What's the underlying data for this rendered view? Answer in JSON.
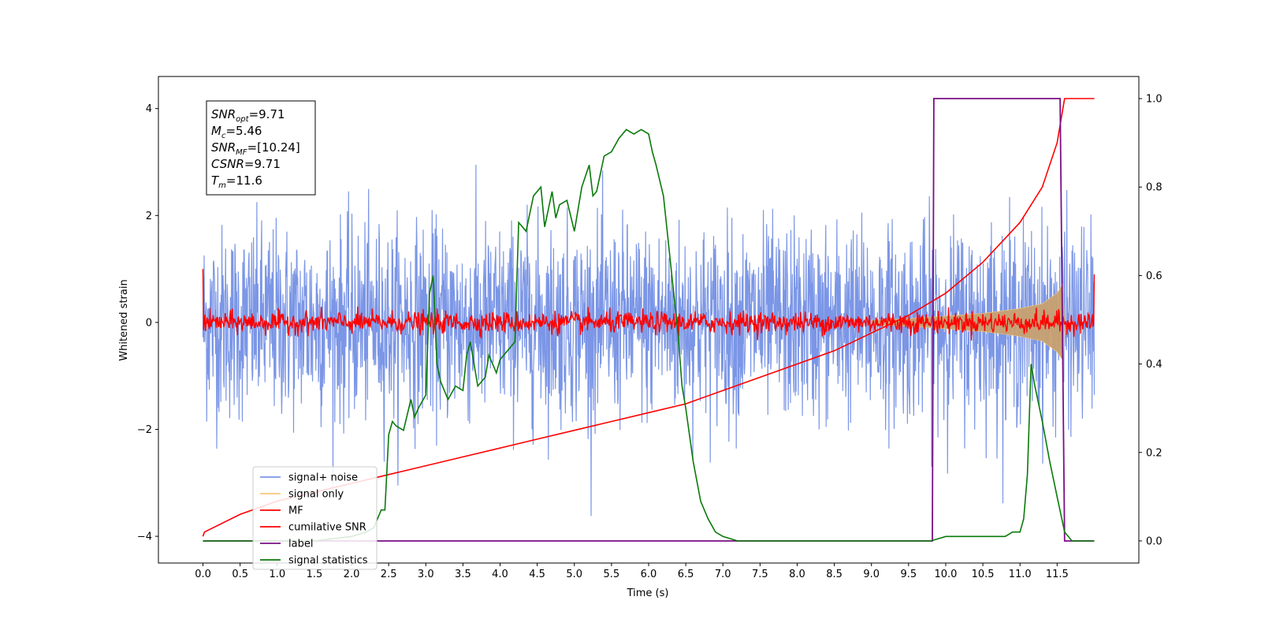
{
  "chart_data": {
    "type": "line",
    "xlabel": "Time (s)",
    "ylabel": "Whitened strain",
    "xlim": [
      -0.6,
      12.6
    ],
    "ylim_left": [
      -4.5,
      4.6
    ],
    "ylim_right": [
      -0.05,
      1.05
    ],
    "x_ticks": [
      "0.0",
      "0.5",
      "1.0",
      "1.5",
      "2.0",
      "2.5",
      "3.0",
      "3.5",
      "4.0",
      "4.5",
      "5.0",
      "5.5",
      "6.0",
      "6.5",
      "7.0",
      "7.5",
      "8.0",
      "8.5",
      "9.0",
      "9.5",
      "10.0",
      "10.5",
      "11.0",
      "11.5"
    ],
    "y_ticks_left": [
      "−4",
      "−2",
      "0",
      "2",
      "4"
    ],
    "y_ticks_right": [
      "0.0",
      "0.2",
      "0.4",
      "0.6",
      "0.8",
      "1.0"
    ],
    "legend": {
      "placement": "lower-left",
      "entries": [
        {
          "label": "signal+ noise",
          "color": "#7b96e6"
        },
        {
          "label": "signal only",
          "color": "#f5c97a"
        },
        {
          "label": "MF",
          "color": "#ff0000"
        },
        {
          "label": "cumilative SNR",
          "color": "#ff0000"
        },
        {
          "label": "label",
          "color": "#7a0f85"
        },
        {
          "label": "signal statistics",
          "color": "#0a7a0a"
        }
      ]
    },
    "annotation": {
      "lines": [
        {
          "base": "SNR",
          "sub": "opt",
          "rest": "=9.71"
        },
        {
          "base": "M",
          "sub": "c",
          "rest": "=5.46"
        },
        {
          "base": "SNR",
          "sub": "MF",
          "rest": "=[10.24]"
        },
        {
          "base": "CSNR",
          "sub": "",
          "rest": "=9.71"
        },
        {
          "base": "T",
          "sub": "m",
          "rest": "=11.6"
        }
      ]
    },
    "series": [
      {
        "name": "signal+ noise",
        "axis": "left",
        "description_range": "white noise roughly between -2.2 and 2.5, time 0 to 12",
        "x_range": [
          0,
          12
        ],
        "amplitude": 1.0
      },
      {
        "name": "signal only",
        "axis": "left",
        "envelope_points": [
          [
            9.0,
            0.04
          ],
          [
            9.5,
            0.07
          ],
          [
            10.0,
            0.12
          ],
          [
            10.5,
            0.17
          ],
          [
            11.0,
            0.26
          ],
          [
            11.3,
            0.35
          ],
          [
            11.5,
            0.55
          ],
          [
            11.58,
            0.72
          ],
          [
            11.6,
            0.0
          ]
        ]
      },
      {
        "name": "MF",
        "axis": "left",
        "x_range": [
          0,
          12
        ],
        "noise_amplitude": 0.1,
        "end_points": [
          [
            0.0,
            1.0
          ],
          [
            12.0,
            0.9
          ]
        ]
      },
      {
        "name": "cumilative SNR",
        "axis": "right",
        "x": [
          0.0,
          0.02,
          0.5,
          1.0,
          1.5,
          2.0,
          2.5,
          3.0,
          3.5,
          4.0,
          4.5,
          5.0,
          5.5,
          6.0,
          6.5,
          7.0,
          7.5,
          8.0,
          8.5,
          9.0,
          9.5,
          10.0,
          10.5,
          11.0,
          11.3,
          11.5,
          11.6,
          12.0
        ],
        "y": [
          0.01,
          0.02,
          0.06,
          0.09,
          0.11,
          0.13,
          0.15,
          0.17,
          0.19,
          0.21,
          0.23,
          0.25,
          0.27,
          0.29,
          0.31,
          0.34,
          0.37,
          0.4,
          0.43,
          0.47,
          0.51,
          0.56,
          0.63,
          0.72,
          0.8,
          0.9,
          1.0,
          1.0
        ]
      },
      {
        "name": "label",
        "axis": "right",
        "x": [
          0.0,
          9.82,
          9.84,
          11.54,
          11.6,
          12.0
        ],
        "y": [
          0.0,
          0.0,
          1.0,
          1.0,
          0.0,
          0.0
        ]
      },
      {
        "name": "signal statistics",
        "axis": "right",
        "x": [
          0.0,
          0.5,
          1.0,
          1.5,
          2.0,
          2.2,
          2.3,
          2.4,
          2.45,
          2.5,
          2.55,
          2.6,
          2.7,
          2.8,
          2.85,
          2.9,
          3.0,
          3.05,
          3.1,
          3.15,
          3.2,
          3.3,
          3.4,
          3.5,
          3.55,
          3.6,
          3.65,
          3.7,
          3.8,
          3.85,
          3.95,
          4.0,
          4.1,
          4.2,
          4.25,
          4.3,
          4.35,
          4.45,
          4.5,
          4.55,
          4.6,
          4.7,
          4.75,
          4.8,
          4.9,
          5.0,
          5.1,
          5.2,
          5.25,
          5.3,
          5.4,
          5.5,
          5.6,
          5.7,
          5.8,
          5.9,
          6.0,
          6.05,
          6.1,
          6.2,
          6.3,
          6.4,
          6.45,
          6.5,
          6.6,
          6.7,
          6.8,
          6.9,
          7.0,
          7.2,
          7.5,
          8.0,
          8.5,
          9.0,
          9.5,
          9.8,
          10.0,
          10.2,
          10.5,
          10.8,
          10.9,
          11.0,
          11.05,
          11.1,
          11.15,
          11.2,
          11.3,
          11.4,
          11.5,
          11.6,
          11.7,
          12.0
        ],
        "y": [
          0.0,
          0.0,
          0.0,
          0.0,
          0.01,
          0.02,
          0.03,
          0.07,
          0.07,
          0.24,
          0.27,
          0.26,
          0.25,
          0.32,
          0.28,
          0.3,
          0.33,
          0.56,
          0.6,
          0.4,
          0.36,
          0.32,
          0.35,
          0.34,
          0.42,
          0.45,
          0.4,
          0.35,
          0.37,
          0.42,
          0.38,
          0.41,
          0.43,
          0.45,
          0.72,
          0.71,
          0.7,
          0.78,
          0.79,
          0.8,
          0.71,
          0.79,
          0.73,
          0.76,
          0.77,
          0.7,
          0.8,
          0.85,
          0.78,
          0.79,
          0.87,
          0.88,
          0.91,
          0.93,
          0.92,
          0.93,
          0.92,
          0.88,
          0.85,
          0.78,
          0.62,
          0.46,
          0.35,
          0.3,
          0.18,
          0.09,
          0.05,
          0.02,
          0.01,
          0.0,
          0.0,
          0.0,
          0.0,
          0.0,
          0.0,
          0.0,
          0.01,
          0.01,
          0.01,
          0.01,
          0.02,
          0.02,
          0.05,
          0.15,
          0.4,
          0.35,
          0.27,
          0.18,
          0.1,
          0.02,
          0.0,
          0.0
        ]
      }
    ]
  }
}
